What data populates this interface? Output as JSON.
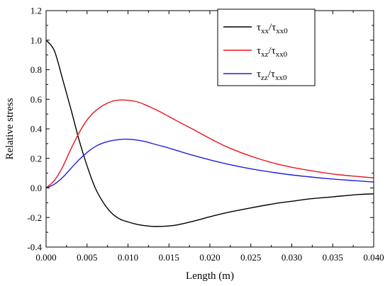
{
  "chart_data": {
    "type": "line",
    "xlabel": "Length (m)",
    "ylabel": "Relative stress",
    "xlim": [
      0,
      0.04
    ],
    "ylim": [
      -0.4,
      1.2
    ],
    "x_ticks": [
      "0.000",
      "0.005",
      "0.010",
      "0.015",
      "0.020",
      "0.025",
      "0.030",
      "0.035",
      "0.040"
    ],
    "y_ticks": [
      "-0.4",
      "-0.2",
      "0.0",
      "0.2",
      "0.4",
      "0.6",
      "0.8",
      "1.0",
      "1.2"
    ],
    "grid": false,
    "legend_position": "top-right",
    "series": [
      {
        "name": "τxx/τxx0",
        "legend": {
          "base1": "τ",
          "sub1": "xx",
          "base2": "/τ",
          "sub2": "xx0"
        },
        "color": "#000000",
        "points": [
          [
            0,
            1.0
          ],
          [
            0.001,
            0.93
          ],
          [
            0.002,
            0.74
          ],
          [
            0.003,
            0.54
          ],
          [
            0.004,
            0.33
          ],
          [
            0.005,
            0.15
          ],
          [
            0.006,
            0.0
          ],
          [
            0.007,
            -0.1
          ],
          [
            0.008,
            -0.17
          ],
          [
            0.009,
            -0.21
          ],
          [
            0.01,
            -0.23
          ],
          [
            0.011,
            -0.245
          ],
          [
            0.012,
            -0.255
          ],
          [
            0.013,
            -0.26
          ],
          [
            0.014,
            -0.26
          ],
          [
            0.015,
            -0.257
          ],
          [
            0.016,
            -0.25
          ],
          [
            0.018,
            -0.225
          ],
          [
            0.02,
            -0.195
          ],
          [
            0.022,
            -0.168
          ],
          [
            0.025,
            -0.135
          ],
          [
            0.028,
            -0.105
          ],
          [
            0.03,
            -0.09
          ],
          [
            0.032,
            -0.075
          ],
          [
            0.035,
            -0.06
          ],
          [
            0.038,
            -0.045
          ],
          [
            0.04,
            -0.04
          ]
        ]
      },
      {
        "name": "τxz/τxx0",
        "legend": {
          "base1": "τ",
          "sub1": "xz",
          "base2": "/τ",
          "sub2": "xx0"
        },
        "color": "#e8161d",
        "points": [
          [
            0,
            0.0
          ],
          [
            0.001,
            0.05
          ],
          [
            0.002,
            0.14
          ],
          [
            0.003,
            0.26
          ],
          [
            0.004,
            0.37
          ],
          [
            0.005,
            0.46
          ],
          [
            0.006,
            0.52
          ],
          [
            0.007,
            0.56
          ],
          [
            0.008,
            0.585
          ],
          [
            0.009,
            0.595
          ],
          [
            0.0095,
            0.595
          ],
          [
            0.01,
            0.593
          ],
          [
            0.011,
            0.585
          ],
          [
            0.012,
            0.565
          ],
          [
            0.013,
            0.54
          ],
          [
            0.014,
            0.513
          ],
          [
            0.015,
            0.483
          ],
          [
            0.016,
            0.453
          ],
          [
            0.018,
            0.395
          ],
          [
            0.02,
            0.335
          ],
          [
            0.022,
            0.28
          ],
          [
            0.024,
            0.235
          ],
          [
            0.026,
            0.197
          ],
          [
            0.028,
            0.165
          ],
          [
            0.03,
            0.14
          ],
          [
            0.032,
            0.12
          ],
          [
            0.034,
            0.102
          ],
          [
            0.036,
            0.088
          ],
          [
            0.038,
            0.078
          ],
          [
            0.04,
            0.068
          ]
        ]
      },
      {
        "name": "τzz/τxx0",
        "legend": {
          "base1": "τ",
          "sub1": "zz",
          "base2": "/τ",
          "sub2": "xx0"
        },
        "color": "#1f1fe0",
        "points": [
          [
            0,
            0.0
          ],
          [
            0.001,
            0.025
          ],
          [
            0.002,
            0.07
          ],
          [
            0.003,
            0.13
          ],
          [
            0.004,
            0.19
          ],
          [
            0.005,
            0.24
          ],
          [
            0.006,
            0.28
          ],
          [
            0.007,
            0.305
          ],
          [
            0.008,
            0.32
          ],
          [
            0.009,
            0.328
          ],
          [
            0.0098,
            0.33
          ],
          [
            0.011,
            0.325
          ],
          [
            0.012,
            0.315
          ],
          [
            0.013,
            0.3
          ],
          [
            0.014,
            0.285
          ],
          [
            0.015,
            0.27
          ],
          [
            0.016,
            0.253
          ],
          [
            0.018,
            0.22
          ],
          [
            0.02,
            0.19
          ],
          [
            0.022,
            0.163
          ],
          [
            0.024,
            0.14
          ],
          [
            0.026,
            0.12
          ],
          [
            0.028,
            0.103
          ],
          [
            0.03,
            0.088
          ],
          [
            0.032,
            0.076
          ],
          [
            0.034,
            0.065
          ],
          [
            0.036,
            0.056
          ],
          [
            0.038,
            0.048
          ],
          [
            0.04,
            0.04
          ]
        ]
      }
    ]
  }
}
